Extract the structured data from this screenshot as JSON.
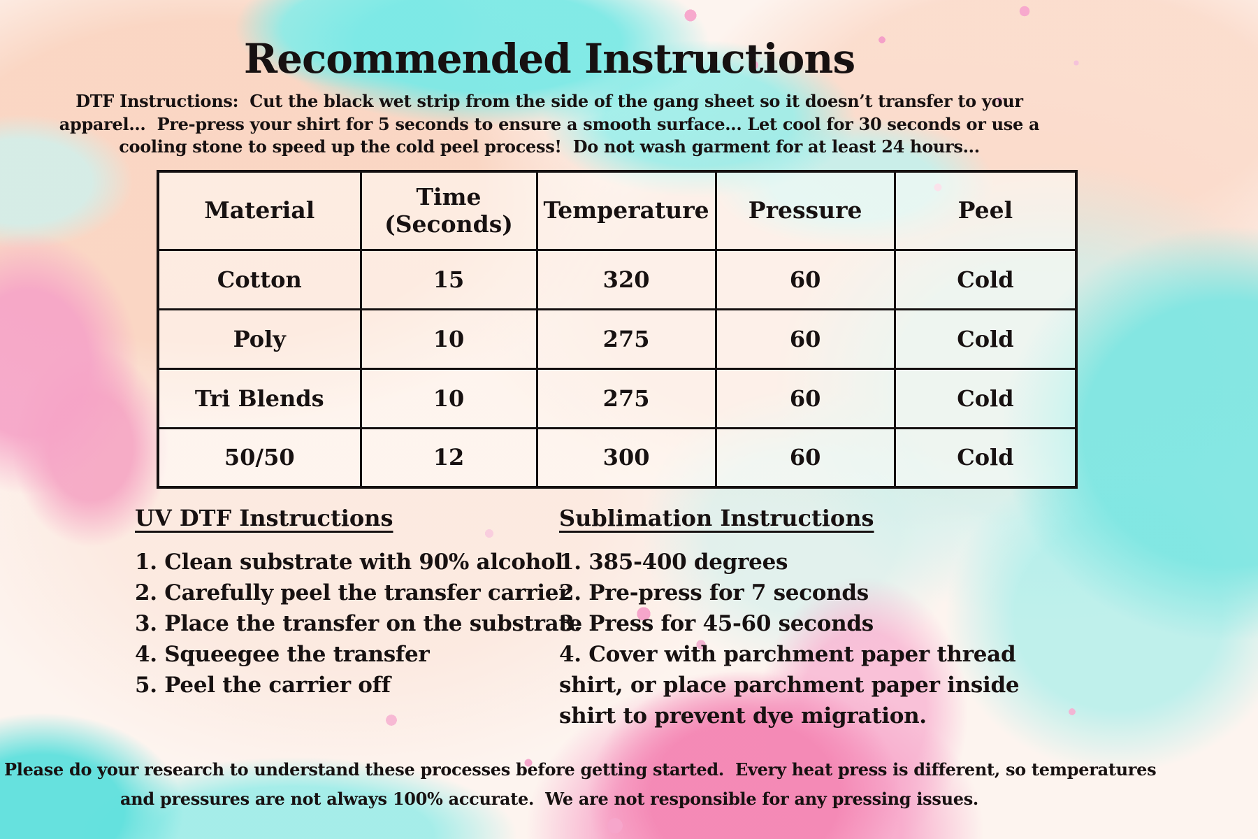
{
  "title": "Recommended Instructions",
  "intro_text": "DTF Instructions:  Cut the black wet strip from the side of the gang sheet so it doesn’t transfer to your\napparel...  Pre-press your shirt for 5 seconds to ensure a smooth surface... Let cool for 30 seconds or use a\ncooling stone to speed up the cold peel process!  Do not wash garment for at least 24 hours...",
  "table": {
    "headers": [
      "Material",
      "Time\n(Seconds)",
      "Temperature",
      "Pressure",
      "Peel"
    ],
    "rows": [
      [
        "Cotton",
        "15",
        "320",
        "60",
        "Cold"
      ],
      [
        "Poly",
        "10",
        "275",
        "60",
        "Cold"
      ],
      [
        "Tri Blends",
        "10",
        "275",
        "60",
        "Cold"
      ],
      [
        "50/50",
        "12",
        "300",
        "60",
        "Cold"
      ]
    ]
  },
  "uv_dtf": {
    "heading": "UV DTF Instructions",
    "items": [
      "1. Clean substrate with 90% alcohol",
      "2. Carefully peel the transfer carrier",
      "3. Place the transfer on the substrate",
      "4. Squeegee the transfer",
      "5. Peel the carrier off"
    ]
  },
  "sublimation": {
    "heading": "Sublimation Instructions",
    "items": [
      "1. 385-400 degrees",
      "2. Pre-press for 7 seconds",
      "3. Press for 45-60 seconds",
      "4. Cover with parchment paper thread\nshirt, or place parchment paper inside\nshirt to prevent dye migration."
    ]
  },
  "footer_text": "Please do your research to understand these processes before getting started.  Every heat press is different, so temperatures\nand pressures are not always 100% accurate.  We are not responsible for any pressing issues.",
  "colors": {
    "ink": "#171111",
    "background_base": "#fdf4ef",
    "background_peach": "#fad5c2",
    "background_teal": "#7de9e5",
    "background_pink": "#f6a6cb",
    "table_cell_fill": "#fffdfa",
    "table_border": "#141010"
  }
}
